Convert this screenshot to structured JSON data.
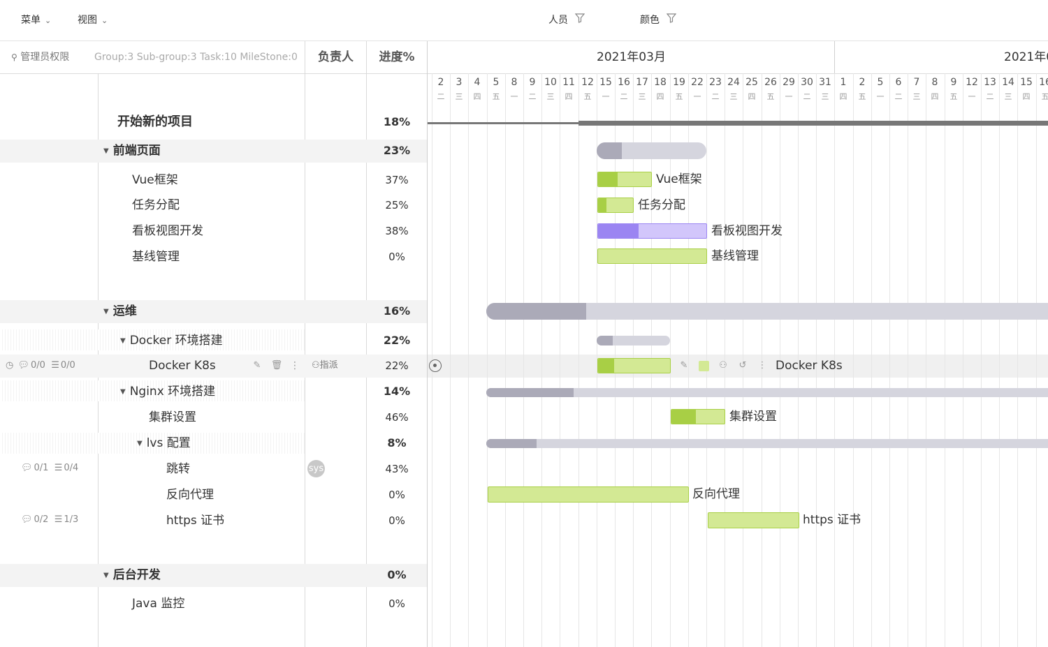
{
  "toolbar": {
    "menu_label": "菜单",
    "view_label": "视图",
    "people_label": "人员",
    "color_label": "颜色"
  },
  "header": {
    "admin_label": "管理员权限",
    "summary": "Group:3 Sub-group:3 Task:10 MileStone:0",
    "owner_col": "负责人",
    "progress_col": "进度%",
    "month_1": "2021年03月",
    "month_2": "2021年0"
  },
  "timeline": {
    "days": [
      "2",
      "3",
      "4",
      "5",
      "8",
      "9",
      "10",
      "11",
      "12",
      "15",
      "16",
      "17",
      "18",
      "19",
      "22",
      "23",
      "24",
      "25",
      "26",
      "29",
      "30",
      "31",
      "1",
      "2",
      "5",
      "6",
      "7",
      "8",
      "9",
      "12",
      "13",
      "14",
      "15",
      "16"
    ],
    "weekdays": [
      "二",
      "三",
      "四",
      "五",
      "一",
      "二",
      "三",
      "四",
      "五",
      "一",
      "二",
      "三",
      "四",
      "五",
      "一",
      "二",
      "三",
      "四",
      "五",
      "一",
      "二",
      "三",
      "四",
      "五",
      "一",
      "二",
      "三",
      "四",
      "五",
      "一",
      "二",
      "三",
      "四",
      "五"
    ]
  },
  "tasks": {
    "project": {
      "name": "开始新的项目",
      "progress": "18%"
    },
    "frontend": {
      "name": "前端页面",
      "progress": "23%"
    },
    "vue": {
      "name": "Vue框架",
      "progress": "37%"
    },
    "assign": {
      "name": "任务分配",
      "progress": "25%"
    },
    "kanban": {
      "name": "看板视图开发",
      "progress": "38%"
    },
    "baseline": {
      "name": "基线管理",
      "progress": "0%"
    },
    "ops": {
      "name": "运维",
      "progress": "16%"
    },
    "docker_env": {
      "name": "Docker 环境搭建",
      "progress": "22%"
    },
    "docker_k8s": {
      "name": "Docker K8s",
      "progress": "22%",
      "assign_label": "指派",
      "comments": "0/0",
      "checklist": "0/0"
    },
    "nginx_env": {
      "name": "Nginx 环境搭建",
      "progress": "14%"
    },
    "cluster": {
      "name": "集群设置",
      "progress": "46%"
    },
    "lvs": {
      "name": "lvs 配置",
      "progress": "8%"
    },
    "jump": {
      "name": "跳转",
      "progress": "43%",
      "comments": "0/1",
      "checklist": "0/4",
      "avatar": "sys"
    },
    "proxy": {
      "name": "反向代理",
      "progress": "0%"
    },
    "https": {
      "name": "https 证书",
      "progress": "0%",
      "comments": "0/2",
      "checklist": "1/3"
    },
    "backend": {
      "name": "后台开发",
      "progress": "0%"
    },
    "java": {
      "name": "Java 监控",
      "progress": "0%"
    }
  },
  "colors": {
    "green_bar": "#d3e994",
    "green_fill": "#a8cf45",
    "purple_bar": "#d2c6fb",
    "purple_fill": "#9b85f2",
    "summary_bar": "#d5d5de",
    "summary_fill": "#abaab8"
  }
}
